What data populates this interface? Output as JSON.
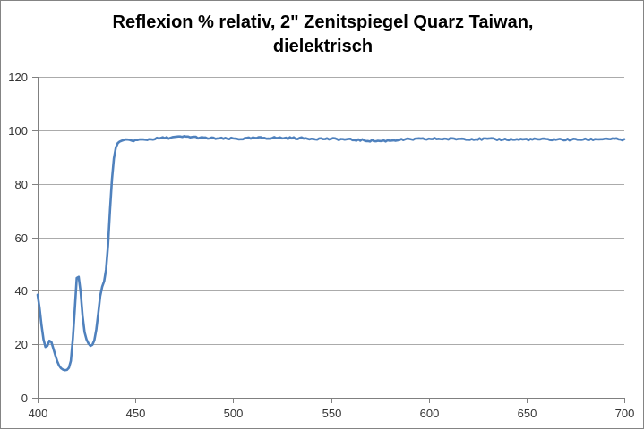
{
  "chart_data": {
    "type": "line",
    "title_line1": "Reflexion % relativ, 2\" Zenitspiegel Quarz Taiwan,",
    "title_line2": "dielektrisch",
    "xlabel": "",
    "ylabel": "",
    "xlim": [
      400,
      700
    ],
    "ylim": [
      0,
      120
    ],
    "x_ticks": [
      400,
      450,
      500,
      550,
      600,
      650,
      700
    ],
    "y_ticks": [
      0,
      20,
      40,
      60,
      80,
      100,
      120
    ],
    "grid": "horizontal-only",
    "legend": "none",
    "line_color": "#4F81BD",
    "gridline_color": "#ABABAB",
    "axis_color": "#808080",
    "tick_label_color": "#333333",
    "background_color": "#FFFFFF",
    "noise_amplitude": 0.35,
    "noise_start_x": 443,
    "series": [
      {
        "name": "Reflexion % relativ",
        "points": [
          [
            400,
            38.5
          ],
          [
            401,
            33.5
          ],
          [
            402,
            27.0
          ],
          [
            403,
            21.8
          ],
          [
            404,
            19.0
          ],
          [
            405,
            19.4
          ],
          [
            406,
            21.3
          ],
          [
            407,
            20.9
          ],
          [
            408,
            18.5
          ],
          [
            409,
            16.0
          ],
          [
            410,
            13.7
          ],
          [
            411,
            12.0
          ],
          [
            412,
            11.0
          ],
          [
            413,
            10.5
          ],
          [
            414,
            10.3
          ],
          [
            415,
            10.4
          ],
          [
            416,
            11.2
          ],
          [
            417,
            13.8
          ],
          [
            418,
            22.0
          ],
          [
            419,
            33.0
          ],
          [
            420,
            44.8
          ],
          [
            421,
            45.2
          ],
          [
            422,
            39.5
          ],
          [
            423,
            30.5
          ],
          [
            424,
            24.5
          ],
          [
            425,
            21.8
          ],
          [
            426,
            20.3
          ],
          [
            427,
            19.4
          ],
          [
            428,
            19.8
          ],
          [
            429,
            21.5
          ],
          [
            430,
            25.5
          ],
          [
            431,
            31.5
          ],
          [
            432,
            38.0
          ],
          [
            433,
            41.5
          ],
          [
            434,
            43.5
          ],
          [
            435,
            48.0
          ],
          [
            436,
            57.0
          ],
          [
            437,
            70.0
          ],
          [
            438,
            81.5
          ],
          [
            439,
            89.5
          ],
          [
            440,
            93.5
          ],
          [
            441,
            95.2
          ],
          [
            442,
            95.8
          ],
          [
            443,
            96.1
          ],
          [
            446,
            96.3
          ],
          [
            449,
            96.2
          ],
          [
            452,
            96.4
          ],
          [
            455,
            96.5
          ],
          [
            458,
            96.7
          ],
          [
            461,
            96.9
          ],
          [
            464,
            97.1
          ],
          [
            467,
            97.2
          ],
          [
            470,
            97.4
          ],
          [
            473,
            97.5
          ],
          [
            476,
            97.6
          ],
          [
            479,
            97.5
          ],
          [
            482,
            97.3
          ],
          [
            485,
            97.1
          ],
          [
            488,
            97.0
          ],
          [
            491,
            97.0
          ],
          [
            494,
            96.9
          ],
          [
            497,
            96.8
          ],
          [
            500,
            96.9
          ],
          [
            503,
            96.8
          ],
          [
            506,
            96.9
          ],
          [
            509,
            97.0
          ],
          [
            512,
            97.1
          ],
          [
            515,
            97.2
          ],
          [
            518,
            97.1
          ],
          [
            521,
            97.2
          ],
          [
            524,
            97.15
          ],
          [
            527,
            97.1
          ],
          [
            530,
            97.1
          ],
          [
            533,
            97.05
          ],
          [
            536,
            97.0
          ],
          [
            539,
            96.95
          ],
          [
            542,
            96.9
          ],
          [
            545,
            96.85
          ],
          [
            548,
            96.8
          ],
          [
            551,
            96.75
          ],
          [
            554,
            96.7
          ],
          [
            557,
            96.6
          ],
          [
            560,
            96.5
          ],
          [
            563,
            96.4
          ],
          [
            566,
            96.3
          ],
          [
            569,
            96.15
          ],
          [
            572,
            96.05
          ],
          [
            575,
            96.0
          ],
          [
            578,
            96.1
          ],
          [
            581,
            96.25
          ],
          [
            584,
            96.4
          ],
          [
            587,
            96.5
          ],
          [
            590,
            96.6
          ],
          [
            593,
            96.7
          ],
          [
            596,
            96.7
          ],
          [
            599,
            96.75
          ],
          [
            602,
            96.8
          ],
          [
            605,
            96.85
          ],
          [
            608,
            96.8
          ],
          [
            611,
            96.75
          ],
          [
            614,
            96.8
          ],
          [
            617,
            96.85
          ],
          [
            620,
            96.8
          ],
          [
            623,
            96.75
          ],
          [
            626,
            96.7
          ],
          [
            629,
            96.75
          ],
          [
            632,
            96.7
          ],
          [
            635,
            96.6
          ],
          [
            638,
            96.65
          ],
          [
            641,
            96.6
          ],
          [
            644,
            96.55
          ],
          [
            647,
            96.6
          ],
          [
            650,
            96.65
          ],
          [
            653,
            96.6
          ],
          [
            656,
            96.65
          ],
          [
            659,
            96.6
          ],
          [
            662,
            96.55
          ],
          [
            665,
            96.6
          ],
          [
            668,
            96.55
          ],
          [
            671,
            96.5
          ],
          [
            674,
            96.55
          ],
          [
            677,
            96.6
          ],
          [
            680,
            96.55
          ],
          [
            683,
            96.6
          ],
          [
            686,
            96.7
          ],
          [
            689,
            96.8
          ],
          [
            692,
            96.85
          ],
          [
            695,
            96.7
          ],
          [
            698,
            96.55
          ],
          [
            700,
            96.4
          ]
        ]
      }
    ]
  }
}
